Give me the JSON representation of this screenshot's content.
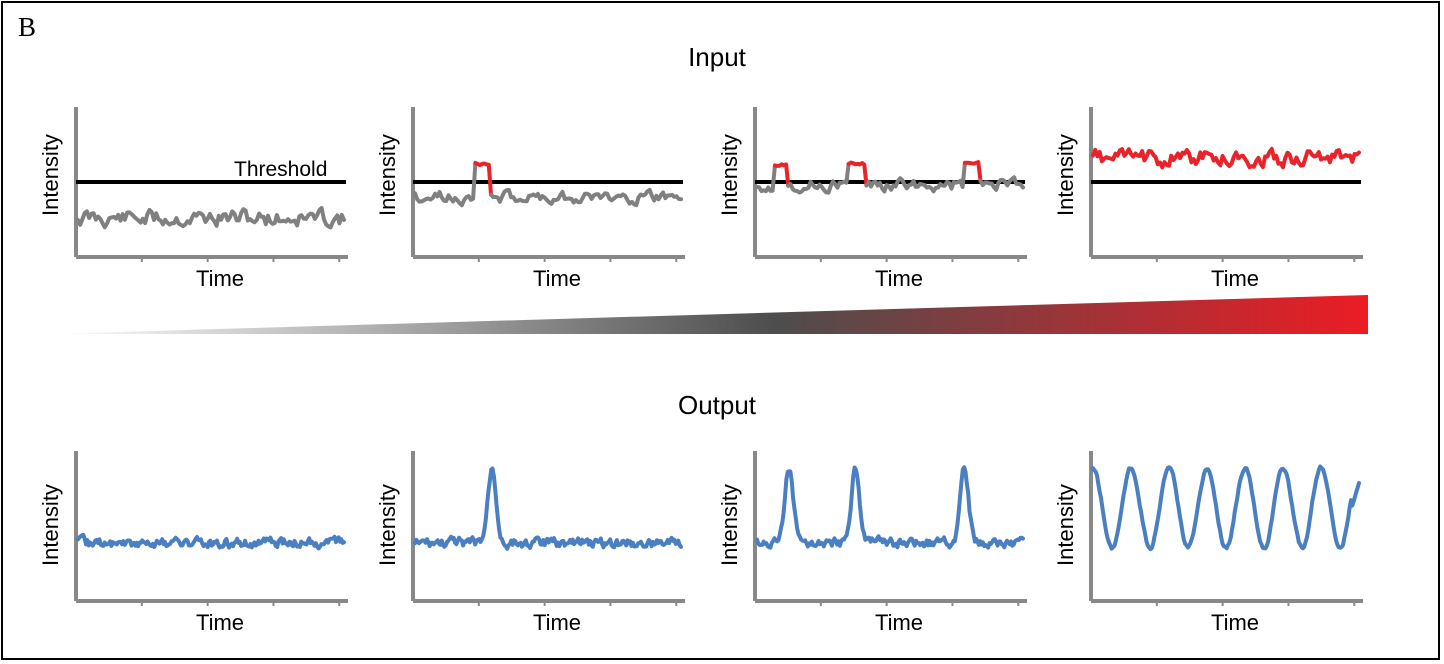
{
  "panel_label": "B",
  "input_title": "Input",
  "output_title": "Output",
  "axis": {
    "y_label": "Intensity",
    "x_label": "Time"
  },
  "threshold_label": "Threshold",
  "colors": {
    "below_threshold": "#808080",
    "above_threshold": "#e8242a",
    "threshold_line": "#000000",
    "output_trace": "#4a7fc1",
    "axis": "#888888",
    "gradient_start": "#ffffff",
    "gradient_mid": "#4d4d4d",
    "gradient_end": "#ec1c24"
  },
  "input_plots": [
    {
      "level": "below",
      "threshold_crossings": 0
    },
    {
      "level": "near",
      "threshold_crossings": 1
    },
    {
      "level": "near",
      "threshold_crossings": 3
    },
    {
      "level": "above",
      "threshold_crossings": "continuous"
    }
  ],
  "output_plots": [
    {
      "peaks": 0
    },
    {
      "peaks": 1
    },
    {
      "peaks": 3
    },
    {
      "peaks": 7
    }
  ]
}
